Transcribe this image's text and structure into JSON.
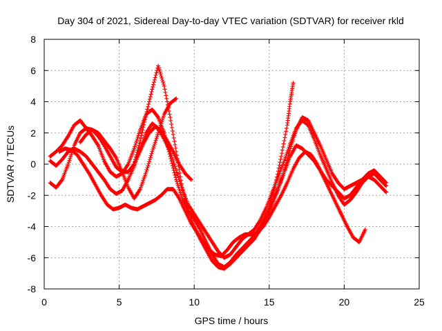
{
  "chart_data": {
    "type": "scatter",
    "title": "Day 304 of 2021, Sidereal Day-to-day VTEC variation (SDTVAR) for receiver rkld",
    "xlabel": "GPS time / hours",
    "ylabel": "SDTVAR / TECUs",
    "xlim": [
      0,
      25
    ],
    "ylim": [
      -8,
      8
    ],
    "xticks": [
      "0",
      "5",
      "10",
      "15",
      "20",
      "25"
    ],
    "yticks": [
      "-8",
      "-6",
      "-4",
      "-2",
      "0",
      "2",
      "4",
      "6",
      "8"
    ],
    "grid": true,
    "marker": "+",
    "color": "#ff0000",
    "series": [
      {
        "name": "trace-a",
        "x": [
          0.4,
          0.8,
          1.2,
          1.6,
          2.0,
          2.4,
          2.8,
          3.2,
          3.6,
          4.0,
          4.4,
          4.8,
          5.2,
          5.6,
          6.0,
          6.4,
          6.8,
          7.2,
          7.6,
          8.0,
          8.4,
          8.8,
          9.2,
          9.6,
          10.0,
          10.4,
          10.8,
          11.2,
          11.6,
          12.0,
          12.4,
          12.8,
          13.2,
          13.6,
          14.0,
          14.4,
          14.8,
          15.2,
          15.6,
          16.0,
          16.4,
          16.8,
          17.2,
          17.6,
          18.0,
          18.4,
          18.8,
          19.2,
          19.6,
          20.0,
          20.4,
          20.8,
          21.2,
          21.6,
          22.0,
          22.4,
          22.8
        ],
        "y": [
          0.5,
          0.8,
          1.2,
          1.8,
          2.5,
          2.8,
          2.3,
          1.8,
          1.2,
          0.2,
          -0.5,
          -0.8,
          -0.6,
          0.0,
          1.0,
          2.2,
          3.2,
          3.5,
          3.0,
          2.0,
          0.5,
          -1.0,
          -2.2,
          -3.0,
          -3.5,
          -4.2,
          -5.0,
          -5.8,
          -6.4,
          -6.6,
          -6.3,
          -5.8,
          -5.4,
          -5.0,
          -4.6,
          -4.0,
          -3.2,
          -2.4,
          -1.5,
          -0.5,
          0.5,
          1.2,
          1.0,
          0.6,
          0.2,
          -0.4,
          -1.0,
          -1.4,
          -1.8,
          -2.2,
          -2.0,
          -1.5,
          -1.0,
          -0.6,
          -0.4,
          -0.8,
          -1.2
        ]
      },
      {
        "name": "trace-b",
        "x": [
          0.4,
          0.8,
          1.2,
          1.6,
          2.0,
          2.4,
          2.8,
          3.2,
          3.6,
          4.0,
          4.4,
          4.8,
          5.2,
          5.6,
          6.0,
          6.4,
          6.8,
          7.2,
          7.6,
          8.0,
          8.4,
          8.8,
          9.2,
          9.6,
          10.0,
          10.4,
          10.8,
          11.2,
          11.6,
          12.0,
          12.4,
          12.8,
          13.2,
          13.6,
          14.0,
          14.4,
          14.8,
          15.2,
          15.6,
          16.0,
          16.4,
          16.8,
          17.2,
          17.6,
          18.0,
          18.4,
          18.8,
          19.2,
          19.6,
          20.0,
          20.4,
          20.8,
          21.2,
          21.6,
          22.0,
          22.4,
          22.8
        ],
        "y": [
          -1.2,
          -1.5,
          -1.0,
          0.0,
          1.2,
          2.0,
          2.3,
          2.2,
          1.8,
          1.2,
          0.5,
          -0.2,
          -0.5,
          -0.5,
          0.0,
          1.5,
          3.2,
          4.8,
          6.3,
          5.0,
          3.0,
          0.8,
          -1.5,
          -3.0,
          -4.0,
          -4.8,
          -5.5,
          -6.2,
          -6.6,
          -6.7,
          -6.4,
          -6.0,
          -5.6,
          -5.2,
          -4.8,
          -4.2,
          -3.5,
          -2.6,
          -1.6,
          -0.5,
          1.0,
          2.2,
          3.0,
          2.8,
          2.0,
          1.2,
          0.3,
          -0.6,
          -1.2,
          -1.6,
          -1.4,
          -1.2,
          -1.0,
          -0.8,
          -1.0,
          -1.4,
          -1.8
        ]
      },
      {
        "name": "trace-c",
        "x": [
          0.4,
          0.8,
          1.2,
          1.6,
          2.0,
          2.4,
          2.8,
          3.2,
          3.6,
          4.0,
          4.4,
          4.8,
          5.2,
          5.6,
          6.0,
          6.4,
          6.8,
          7.2,
          7.6,
          8.0,
          8.4,
          8.8,
          9.2,
          9.6,
          10.0,
          10.4,
          10.8,
          11.2,
          11.6,
          12.0,
          12.4,
          12.8,
          13.2,
          13.6,
          14.0,
          14.4,
          14.8,
          15.2,
          15.6,
          16.0,
          16.4,
          16.8,
          17.2,
          17.6,
          18.0,
          18.4,
          18.8,
          19.2,
          19.6,
          20.0,
          20.4,
          20.8,
          21.2,
          21.6,
          22.0,
          22.4,
          22.8
        ],
        "y": [
          0.2,
          -0.1,
          0.3,
          0.8,
          1.0,
          0.8,
          0.5,
          0.0,
          -0.5,
          -1.0,
          -1.6,
          -1.9,
          -1.7,
          -1.0,
          0.0,
          1.0,
          2.0,
          2.6,
          2.3,
          1.6,
          0.8,
          -0.4,
          -1.6,
          -2.6,
          -3.2,
          -3.8,
          -4.4,
          -5.0,
          -5.6,
          -6.0,
          -5.8,
          -5.3,
          -4.8,
          -4.5,
          -4.2,
          -3.6,
          -2.8,
          -1.8,
          -0.8,
          0.2,
          1.3,
          2.3,
          2.8,
          2.5,
          1.6,
          0.6,
          -0.3,
          -1.2,
          -2.0,
          -2.6,
          -2.3,
          -1.8,
          -1.2,
          -0.8,
          -0.6,
          -1.0,
          -1.4
        ]
      },
      {
        "name": "trace-d",
        "x": [
          1.0,
          1.4,
          1.8,
          2.2,
          2.6,
          3.0,
          3.4,
          3.8,
          4.2,
          4.6,
          5.0,
          5.4,
          5.8,
          6.2,
          6.6,
          7.0,
          7.4,
          7.8,
          8.2,
          8.6,
          9.0,
          9.4,
          9.8,
          10.2,
          10.6,
          11.0,
          11.4,
          11.8,
          12.2,
          12.6,
          13.0,
          13.4,
          13.8,
          14.2,
          14.6,
          15.0,
          15.4,
          15.8,
          16.2,
          16.6,
          17.0,
          17.4,
          17.8,
          18.2,
          18.6,
          19.0,
          19.4,
          19.8,
          20.2,
          20.6,
          21.0,
          21.4
        ],
        "y": [
          0.8,
          1.0,
          0.9,
          0.6,
          0.0,
          -0.6,
          -1.3,
          -2.0,
          -2.6,
          -2.9,
          -2.8,
          -2.6,
          -2.8,
          -2.9,
          -2.7,
          -2.5,
          -2.3,
          -2.0,
          -1.6,
          -1.6,
          -2.2,
          -3.0,
          -3.8,
          -4.4,
          -5.0,
          -5.5,
          -5.8,
          -5.9,
          -5.5,
          -5.0,
          -4.7,
          -4.5,
          -4.5,
          -4.4,
          -4.0,
          -3.4,
          -2.7,
          -2.0,
          -1.2,
          -0.3,
          0.4,
          0.8,
          0.6,
          0.0,
          -0.8,
          -1.6,
          -2.4,
          -3.2,
          -4.0,
          -4.7,
          -5.0,
          -4.2
        ]
      },
      {
        "name": "trace-e",
        "x": [
          2.4,
          2.8,
          3.2,
          3.6,
          4.0,
          4.4,
          4.8,
          5.2,
          5.6,
          6.0,
          6.4,
          6.8,
          7.2,
          7.6,
          8.0,
          8.4,
          8.8
        ],
        "y": [
          1.4,
          1.9,
          2.2,
          2.0,
          1.5,
          1.0,
          0.4,
          -0.5,
          -1.5,
          -2.2,
          -1.6,
          -0.5,
          0.8,
          2.0,
          3.2,
          3.9,
          4.2
        ]
      },
      {
        "name": "trace-f",
        "x": [
          5.8,
          6.2,
          6.6,
          7.0,
          7.4,
          7.8,
          8.2,
          8.6,
          9.0,
          9.4,
          9.8
        ],
        "y": [
          -0.6,
          0.4,
          1.3,
          2.0,
          2.4,
          2.1,
          1.5,
          0.8,
          0.0,
          -0.6,
          -1.0
        ]
      },
      {
        "name": "trace-g",
        "x": [
          15.0,
          15.4,
          15.8,
          16.2,
          16.4,
          16.6
        ],
        "y": [
          -2.6,
          -1.4,
          0.5,
          2.5,
          4.0,
          5.2
        ]
      }
    ]
  }
}
